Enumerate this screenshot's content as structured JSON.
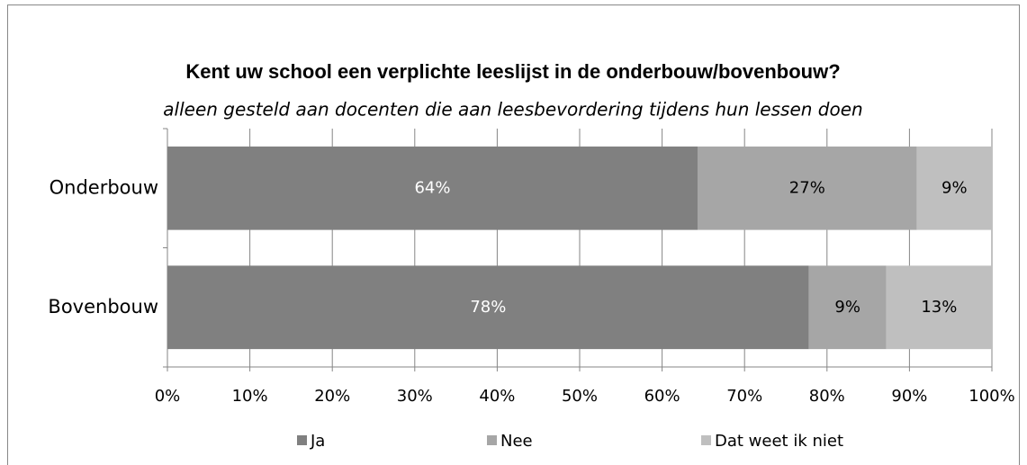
{
  "chart_data": {
    "type": "stacked-bar-horizontal",
    "title": "Kent uw school een verplichte leeslijst in de onderbouw/bovenbouw?",
    "subtitle": "alleen gesteld aan docenten die aan leesbevordering tijdens hun lessen doen",
    "categories": [
      "Onderbouw",
      "Bovenbouw"
    ],
    "series": [
      {
        "name": "Ja",
        "color": "#808080",
        "label_color": "#ffffff",
        "values": [
          64.3,
          77.8
        ],
        "value_labels": [
          "64%",
          "78%"
        ]
      },
      {
        "name": "Nee",
        "color": "#a6a6a6",
        "label_color": "#000000",
        "values": [
          26.6,
          9.4
        ],
        "value_labels": [
          "27%",
          "9%"
        ]
      },
      {
        "name": "Dat weet ik niet",
        "color": "#bfbfbf",
        "label_color": "#000000",
        "values": [
          9.1,
          12.8
        ],
        "value_labels": [
          "9%",
          "13%"
        ]
      }
    ],
    "xlim": [
      0,
      100
    ],
    "xticks": [
      {
        "value": 0,
        "label": "0%"
      },
      {
        "value": 10,
        "label": "10%"
      },
      {
        "value": 20,
        "label": "20%"
      },
      {
        "value": 30,
        "label": "30%"
      },
      {
        "value": 40,
        "label": "40%"
      },
      {
        "value": 50,
        "label": "50%"
      },
      {
        "value": 60,
        "label": "60%"
      },
      {
        "value": 70,
        "label": "70%"
      },
      {
        "value": 80,
        "label": "80%"
      },
      {
        "value": 90,
        "label": "90%"
      },
      {
        "value": 100,
        "label": "100%"
      }
    ],
    "grid": true,
    "legend": "bottom"
  }
}
